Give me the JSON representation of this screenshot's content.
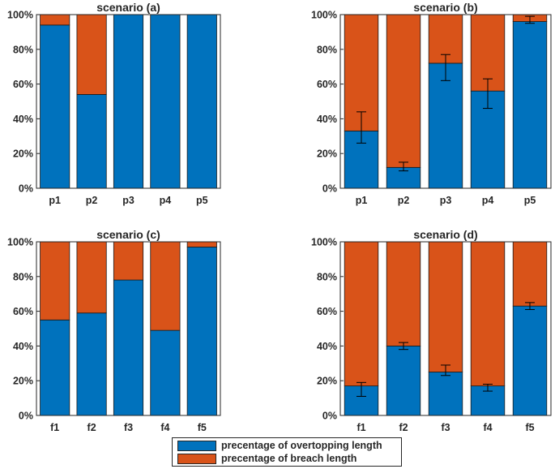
{
  "colors": {
    "overtopping": "#0072BD",
    "breach": "#D95319",
    "axis": "#262626"
  },
  "chart_data": [
    {
      "type": "bar",
      "stacked": true,
      "title": "scenario (a)",
      "categories": [
        "p1",
        "p2",
        "p3",
        "p4",
        "p5"
      ],
      "series": [
        {
          "name": "precentage of overtopping length",
          "values": [
            94,
            54,
            100,
            100,
            100
          ]
        },
        {
          "name": "precentage of breach length",
          "values": [
            6,
            46,
            0,
            0,
            0
          ]
        }
      ],
      "error_bars": null,
      "ylim": [
        0,
        100
      ],
      "yticks": [
        "0%",
        "20%",
        "40%",
        "60%",
        "80%",
        "100%"
      ]
    },
    {
      "type": "bar",
      "stacked": true,
      "title": "scenario (b)",
      "categories": [
        "p1",
        "p2",
        "p3",
        "p4",
        "p5"
      ],
      "series": [
        {
          "name": "precentage of overtopping length",
          "values": [
            33,
            12,
            72,
            56,
            96
          ]
        },
        {
          "name": "precentage of breach length",
          "values": [
            67,
            88,
            28,
            44,
            4
          ]
        }
      ],
      "error_bars": [
        [
          26,
          44
        ],
        [
          10,
          15
        ],
        [
          62,
          77
        ],
        [
          46,
          63
        ],
        [
          95,
          99
        ]
      ],
      "ylim": [
        0,
        100
      ],
      "yticks": [
        "0%",
        "20%",
        "40%",
        "60%",
        "80%",
        "100%"
      ]
    },
    {
      "type": "bar",
      "stacked": true,
      "title": "scenario (c)",
      "categories": [
        "f1",
        "f2",
        "f3",
        "f4",
        "f5"
      ],
      "series": [
        {
          "name": "precentage of overtopping length",
          "values": [
            55,
            59,
            78,
            49,
            97
          ]
        },
        {
          "name": "precentage of breach length",
          "values": [
            45,
            41,
            22,
            51,
            3
          ]
        }
      ],
      "error_bars": null,
      "ylim": [
        0,
        100
      ],
      "yticks": [
        "0%",
        "20%",
        "40%",
        "60%",
        "80%",
        "100%"
      ]
    },
    {
      "type": "bar",
      "stacked": true,
      "title": "scenario (d)",
      "categories": [
        "f1",
        "f2",
        "f3",
        "f4",
        "f5"
      ],
      "series": [
        {
          "name": "precentage of overtopping length",
          "values": [
            17,
            40,
            25,
            17,
            63
          ]
        },
        {
          "name": "precentage of breach length",
          "values": [
            83,
            60,
            75,
            83,
            37
          ]
        }
      ],
      "error_bars": [
        [
          11,
          19
        ],
        [
          38,
          42
        ],
        [
          23,
          29
        ],
        [
          14,
          18
        ],
        [
          61,
          65
        ]
      ],
      "ylim": [
        0,
        100
      ],
      "yticks": [
        "0%",
        "20%",
        "40%",
        "60%",
        "80%",
        "100%"
      ]
    }
  ],
  "legend": {
    "position": "bottom-center",
    "items": [
      {
        "label": "precentage of overtopping length",
        "color": "#0072BD"
      },
      {
        "label": "precentage of breach length",
        "color": "#D95319"
      }
    ]
  }
}
